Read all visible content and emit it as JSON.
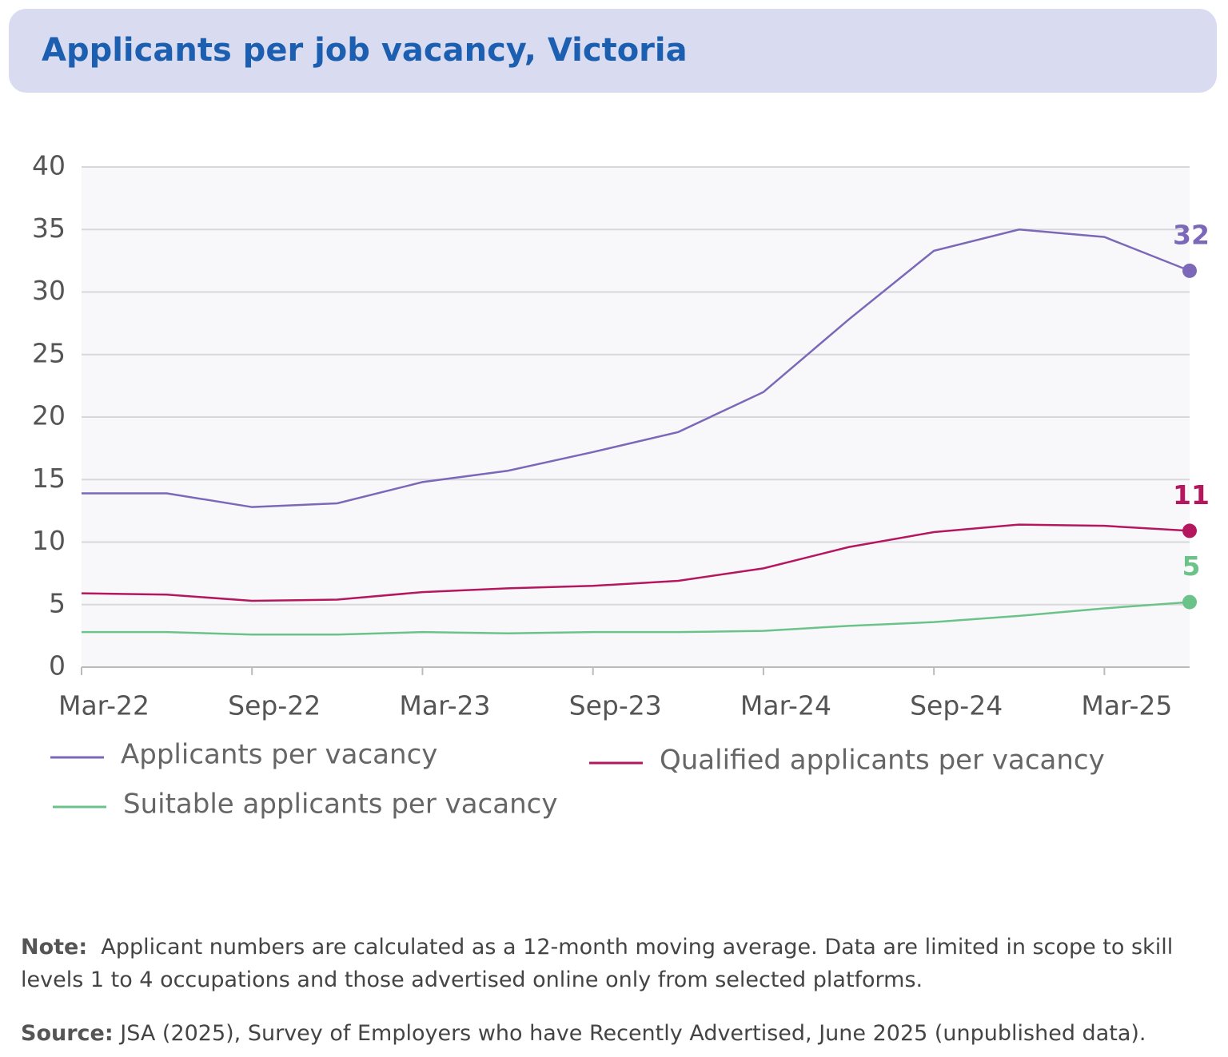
{
  "chart_data": {
    "type": "line",
    "title": "Applicants per job vacancy, Victoria",
    "categories": [
      "Mar-22",
      null,
      "Sep-22",
      null,
      "Mar-23",
      null,
      "Sep-23",
      null,
      "Mar-24",
      null,
      "Sep-24",
      null,
      "Mar-25",
      null
    ],
    "series": [
      {
        "name": "Applicants per vacancy",
        "color": "#7b68b8",
        "values": [
          13.9,
          13.9,
          12.8,
          13.1,
          14.8,
          15.7,
          17.2,
          18.8,
          22.0,
          27.8,
          33.3,
          35.0,
          34.4,
          31.7
        ],
        "value_labels": [
          null,
          null,
          null,
          null,
          null,
          null,
          null,
          null,
          null,
          null,
          null,
          null,
          null,
          "32"
        ]
      },
      {
        "name": "Qualified applicants per vacancy",
        "color": "#b5175e",
        "values": [
          5.9,
          5.8,
          5.3,
          5.4,
          6.0,
          6.3,
          6.5,
          6.9,
          7.9,
          9.6,
          10.8,
          11.4,
          11.3,
          10.9
        ],
        "value_labels": [
          null,
          null,
          null,
          null,
          null,
          null,
          null,
          null,
          null,
          null,
          null,
          null,
          null,
          "11"
        ]
      },
      {
        "name": "Suitable applicants per vacancy",
        "color": "#6cc38a",
        "values": [
          2.8,
          2.8,
          2.6,
          2.6,
          2.8,
          2.7,
          2.8,
          2.8,
          2.9,
          3.3,
          3.6,
          4.1,
          4.7,
          5.2
        ],
        "value_labels": [
          null,
          null,
          null,
          null,
          null,
          null,
          null,
          null,
          null,
          null,
          null,
          null,
          null,
          "5"
        ]
      }
    ],
    "ylim": [
      0,
      40
    ],
    "yticks": [
      0,
      5,
      10,
      15,
      20,
      25,
      30,
      35,
      40
    ],
    "grid": true,
    "note": {
      "label": "Note:",
      "text": "Applicant numbers are calculated as a 12-month moving average. Data are limited in scope to skill levels 1 to 4 occupations and those advertised online only from selected platforms."
    },
    "source": {
      "label": "Source:",
      "text": "JSA (2025), Survey of Employers who have Recently Advertised, June 2025 (unpublished data)."
    }
  }
}
